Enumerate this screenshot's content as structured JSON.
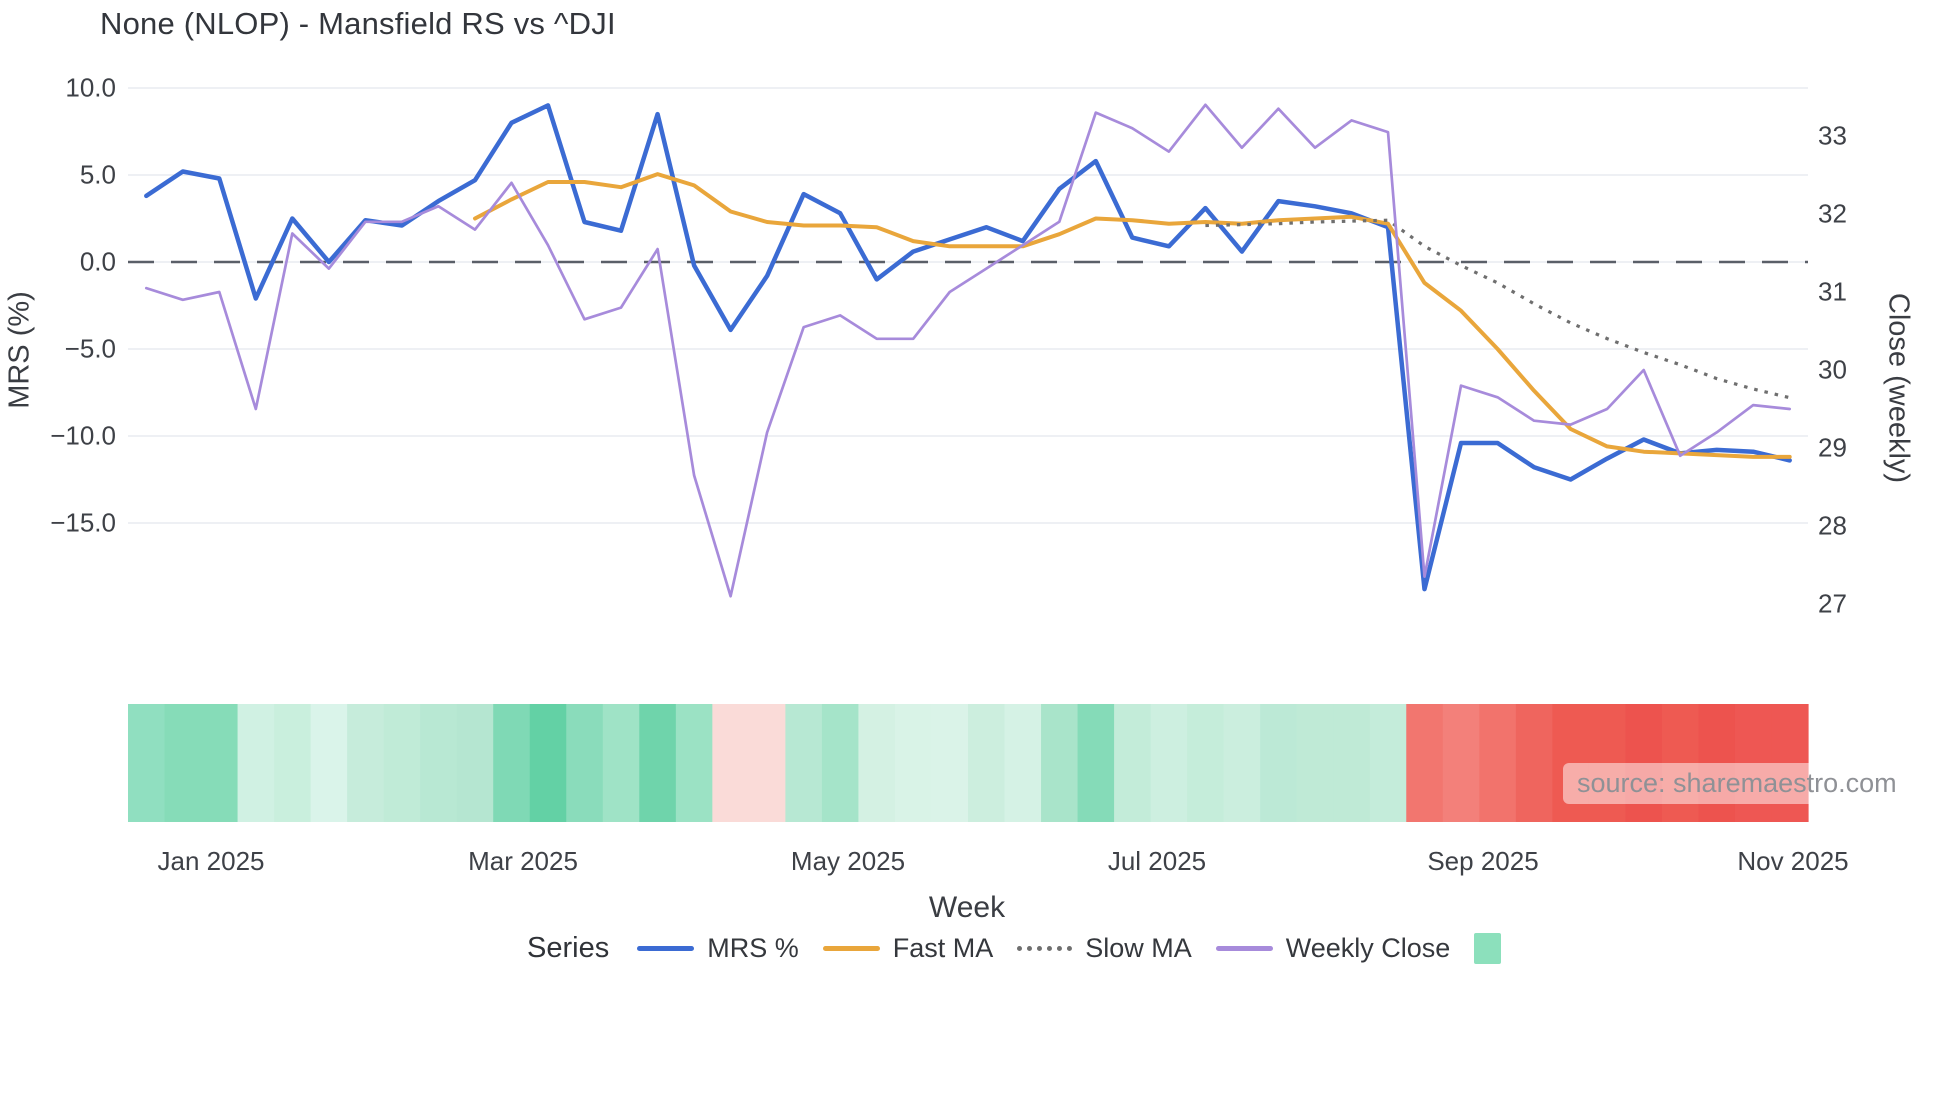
{
  "title": "None (NLOP) - Mansfield RS vs ^DJI",
  "source_note": "source: sharemaestro.com",
  "axes": {
    "left_label": "MRS (%)",
    "right_label": "Close (weekly)",
    "x_label": "Week"
  },
  "legend": {
    "title": "Series",
    "items": [
      {
        "label": "MRS %",
        "swatch": "line",
        "color": "#3b6bd3"
      },
      {
        "label": "Fast MA",
        "swatch": "line",
        "color": "#e9a63b"
      },
      {
        "label": "Slow MA",
        "swatch": "dotted",
        "color": "#6f6f6f"
      },
      {
        "label": "Weekly Close",
        "swatch": "line",
        "color": "#a78bdb"
      },
      {
        "label": "",
        "swatch": "square",
        "color": "#8ce0bc"
      }
    ]
  },
  "chart_data": {
    "type": "line",
    "title": "None (NLOP) - Mansfield RS vs ^DJI",
    "xlabel": "Week",
    "x_tick_labels": [
      "Jan 2025",
      "Mar 2025",
      "May 2025",
      "Jul 2025",
      "Sep 2025",
      "Nov 2025"
    ],
    "weeks": 46,
    "left_axis": {
      "label": "MRS (%)",
      "tick_values": [
        10.0,
        5.0,
        0.0,
        -5.0,
        -10.0,
        -15.0
      ],
      "tick_labels": [
        "10.0",
        "5.0",
        "0.0",
        "−5.0",
        "−10.0",
        "−15.0"
      ],
      "zero_reference_line": 0.0,
      "grid": true
    },
    "right_axis": {
      "label": "Close (weekly)",
      "tick_values": [
        33,
        32,
        31,
        30,
        29,
        28,
        27
      ],
      "tick_labels": [
        "33",
        "32",
        "31",
        "30",
        "29",
        "28",
        "27"
      ]
    },
    "series": [
      {
        "name": "MRS %",
        "axis": "left",
        "color": "#3b6bd3",
        "width": 4.5,
        "style": "solid",
        "values": [
          3.8,
          5.2,
          4.8,
          -2.1,
          2.5,
          0.0,
          2.4,
          2.1,
          3.5,
          4.7,
          8.0,
          9.0,
          2.3,
          1.8,
          8.5,
          -0.2,
          -3.9,
          -0.8,
          3.9,
          2.8,
          -1.0,
          0.6,
          1.3,
          2.0,
          1.2,
          4.2,
          5.8,
          1.4,
          0.9,
          3.1,
          0.6,
          3.5,
          3.2,
          2.8,
          2.0,
          -18.8,
          -10.4,
          -10.4,
          -11.8,
          -12.5,
          -11.3,
          -10.2,
          -11.0,
          -10.8,
          -10.9,
          -11.4
        ]
      },
      {
        "name": "Fast MA",
        "axis": "left",
        "color": "#e9a63b",
        "width": 4,
        "style": "solid",
        "values": [
          null,
          null,
          null,
          null,
          null,
          null,
          null,
          null,
          null,
          2.5,
          3.6,
          4.6,
          4.6,
          4.3,
          5.05,
          4.4,
          2.9,
          2.3,
          2.1,
          2.1,
          2.0,
          1.2,
          0.9,
          0.9,
          0.9,
          1.6,
          2.5,
          2.4,
          2.2,
          2.3,
          2.2,
          2.4,
          2.5,
          2.6,
          2.2,
          -1.2,
          -2.8,
          -5.0,
          -7.4,
          -9.6,
          -10.6,
          -10.9,
          -11.0,
          -11.1,
          -11.2,
          -11.2
        ]
      },
      {
        "name": "Slow MA",
        "axis": "left",
        "color": "#6f6f6f",
        "width": 3.2,
        "style": "dotted",
        "values": [
          null,
          null,
          null,
          null,
          null,
          null,
          null,
          null,
          null,
          null,
          null,
          null,
          null,
          null,
          null,
          null,
          null,
          null,
          null,
          null,
          null,
          null,
          null,
          null,
          null,
          null,
          null,
          null,
          null,
          2.1,
          2.15,
          2.2,
          2.3,
          2.35,
          2.4,
          0.9,
          -0.2,
          -1.2,
          -2.4,
          -3.5,
          -4.4,
          -5.2,
          -5.9,
          -6.7,
          -7.3,
          -7.8
        ]
      },
      {
        "name": "Weekly Close",
        "axis": "right",
        "color": "#a78bdb",
        "width": 2.7,
        "style": "solid",
        "values": [
          31.05,
          30.9,
          31.0,
          29.5,
          31.75,
          31.3,
          31.9,
          31.9,
          32.1,
          31.8,
          32.4,
          31.6,
          30.65,
          30.8,
          31.55,
          28.65,
          27.1,
          29.2,
          30.55,
          30.7,
          30.4,
          30.4,
          31.0,
          31.3,
          31.6,
          31.9,
          33.3,
          33.1,
          32.8,
          33.4,
          32.85,
          33.35,
          32.85,
          33.2,
          33.05,
          27.35,
          29.8,
          29.65,
          29.35,
          29.3,
          29.5,
          30.0,
          28.9,
          29.2,
          29.55,
          29.5
        ]
      }
    ],
    "heatmap_strip": {
      "description": "one colored cell per week below the chart",
      "colors": [
        "#90dfc0",
        "#86dcb8",
        "#86dcb8",
        "#d0f1e3",
        "#c9efdd",
        "#daf4ea",
        "#c6ecdb",
        "#c0ebd7",
        "#b8e8d3",
        "#b5e6d1",
        "#7fd9b5",
        "#63d1a5",
        "#8adcbb",
        "#9fe3c6",
        "#6fd4ab",
        "#9be2c4",
        "#fadbd8",
        "#fadbd8",
        "#b7e8d3",
        "#a5e4c9",
        "#d4f1e3",
        "#d9f3e7",
        "#daf3e8",
        "#cceede",
        "#d5f2e5",
        "#a9e4ca",
        "#85dbb8",
        "#c3ecd9",
        "#cdefe0",
        "#c5edda",
        "#cbeede",
        "#bce9d6",
        "#bfead6",
        "#bfead6",
        "#c4ecda",
        "#f2766f",
        "#f3807a",
        "#f2736c",
        "#ef655e",
        "#ee5a52",
        "#ee5a52",
        "#ed534e",
        "#ee5a52",
        "#ed534e",
        "#ee5753",
        "#ee5753"
      ]
    },
    "colors": {
      "grid": "#e9ebf1",
      "zero_line": "#5a5f68",
      "background": "#ffffff"
    }
  }
}
